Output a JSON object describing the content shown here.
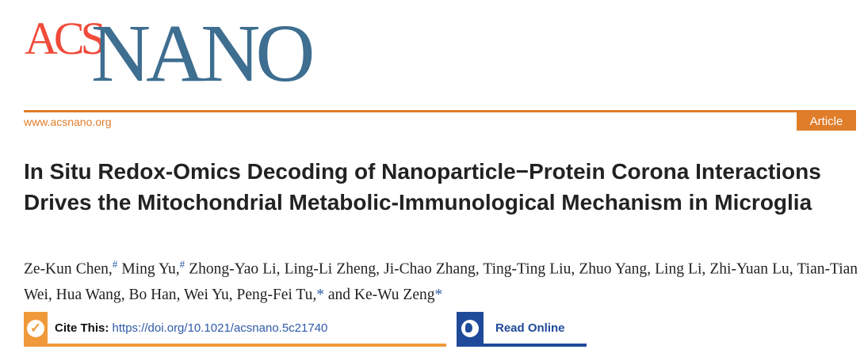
{
  "journal": {
    "logo_acs": "ACS",
    "logo_nano": "NANO",
    "url": "www.acsnano.org",
    "article_type": "Article",
    "brand_orange": "#e07d2a",
    "brand_blue": "#3e6e90",
    "logo_red": "#f04a3a"
  },
  "title": "In Situ Redox-Omics Decoding of Nanoparticle−Protein Corona Interactions Drives the Mitochondrial Metabolic-Immunological Mechanism in Microglia",
  "authors": [
    {
      "name": "Ze-Kun Chen",
      "mark": "#"
    },
    {
      "name": "Ming Yu",
      "mark": "#"
    },
    {
      "name": "Zhong-Yao Li"
    },
    {
      "name": "Ling-Li Zheng"
    },
    {
      "name": "Ji-Chao Zhang"
    },
    {
      "name": "Ting-Ting Liu"
    },
    {
      "name": "Zhuo Yang"
    },
    {
      "name": "Ling Li"
    },
    {
      "name": "Zhi-Yuan Lu"
    },
    {
      "name": "Tian-Tian Wei"
    },
    {
      "name": "Hua Wang"
    },
    {
      "name": "Bo Han"
    },
    {
      "name": "Wei Yu"
    },
    {
      "name": "Peng-Fei Tu",
      "mark": "*"
    },
    {
      "name": "Ke-Wu Zeng",
      "mark": "*"
    }
  ],
  "and_word": "and",
  "cite": {
    "label": "Cite This:",
    "doi": "https://doi.org/10.1021/acsnano.5c21740",
    "icon": "check-circle-icon"
  },
  "read_online": {
    "label": "Read Online",
    "icon": "globe-icon"
  }
}
